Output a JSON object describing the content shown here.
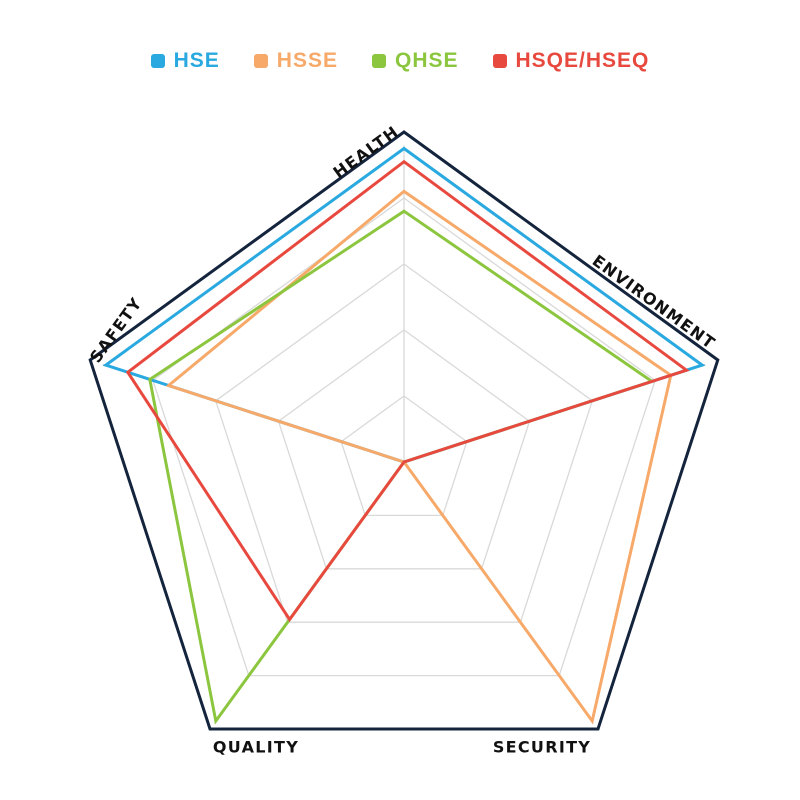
{
  "chart_data": {
    "type": "radar",
    "axes": [
      "HEALTH",
      "ENVIRONMENT",
      "SECURITY",
      "QUALITY",
      "SAFETY"
    ],
    "range": [
      0,
      100
    ],
    "grid_levels": 5,
    "grid": true,
    "legend_placement": "top",
    "series": [
      {
        "name": "HSE",
        "color": "#29a9df",
        "values": [
          95,
          95,
          0,
          0,
          95
        ]
      },
      {
        "name": "HSSE",
        "color": "#f7a96a",
        "values": [
          82,
          85,
          97,
          0,
          75
        ]
      },
      {
        "name": "QHSE",
        "color": "#8cc63f",
        "values": [
          76,
          79,
          0,
          97,
          81
        ]
      },
      {
        "name": "HSQE/HSEQ",
        "color": "#e8493f",
        "values": [
          91,
          90,
          0,
          59,
          88
        ]
      }
    ],
    "outline_color": "#14243d",
    "grid_color": "#d9d9d9"
  }
}
